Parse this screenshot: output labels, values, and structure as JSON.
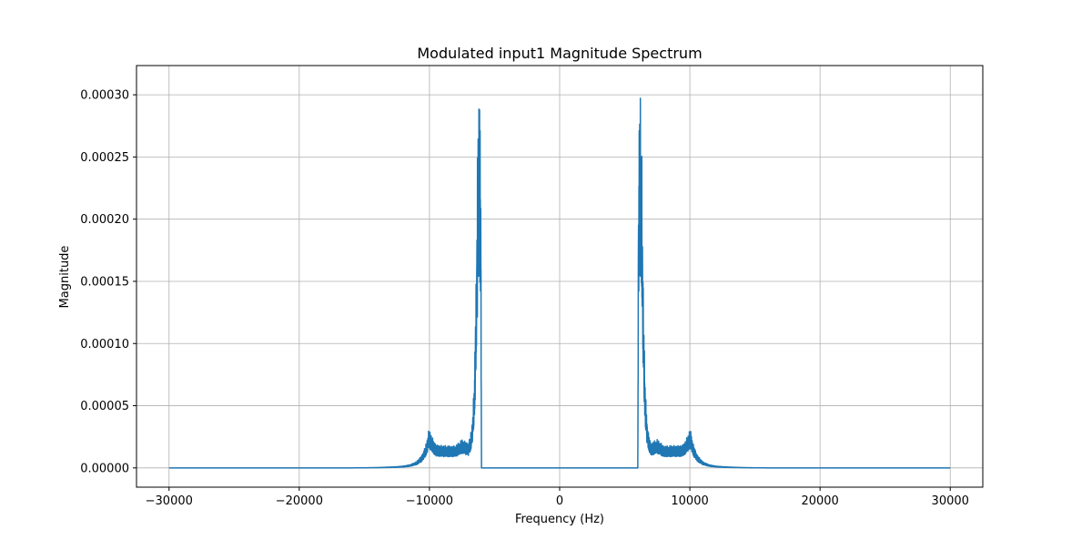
{
  "chart_data": {
    "type": "line",
    "title": "Modulated input1 Magnitude Spectrum",
    "xlabel": "Frequency (Hz)",
    "ylabel": "Magnitude",
    "xlim": [
      -32500,
      32500
    ],
    "ylim": [
      -1.55e-05,
      0.0003235
    ],
    "x_ticks": [
      -30000,
      -20000,
      -10000,
      0,
      10000,
      20000,
      30000
    ],
    "x_tick_labels": [
      "−30000",
      "−20000",
      "−10000",
      "0",
      "10000",
      "20000",
      "30000"
    ],
    "y_ticks": [
      0,
      5e-05,
      0.0001,
      0.00015,
      0.0002,
      0.00025,
      0.0003
    ],
    "y_tick_labels": [
      "0.00000",
      "0.00005",
      "0.00010",
      "0.00015",
      "0.00020",
      "0.00025",
      "0.00030"
    ],
    "grid": true,
    "legend": "none",
    "series": [
      {
        "color": "#1f77b4",
        "x_range": [
          -30000,
          30000
        ],
        "envelope": {
          "x": [
            0,
            6000,
            6050,
            6100,
            6150,
            6200,
            6250,
            6300,
            6400,
            6500,
            6600,
            6700,
            6800,
            7000,
            7300,
            7500,
            7700,
            8000,
            8500,
            9000,
            9500,
            9800,
            10000,
            10100,
            10200,
            10400,
            10600,
            11000,
            11500,
            12000,
            12500,
            13000,
            14000,
            15000,
            16000,
            30000
          ],
          "y": [
            0,
            0,
            0.00023,
            0.00028,
            0.000308,
            0.000308,
            0.0003,
            0.00026,
            0.00017,
            0.0001,
            6e-05,
            4e-05,
            3e-05,
            2e-05,
            2.2e-05,
            2.3e-05,
            2.1e-05,
            1.8e-05,
            1.8e-05,
            1.8e-05,
            1.9e-05,
            2.5e-05,
            3.1e-05,
            2.9e-05,
            2.2e-05,
            1.5e-05,
            1e-05,
            5e-06,
            2.5e-06,
            1.5e-06,
            1e-06,
            7e-07,
            3e-07,
            1e-07,
            0,
            0
          ]
        },
        "symmetry": "mirror about 0 Hz"
      }
    ]
  }
}
